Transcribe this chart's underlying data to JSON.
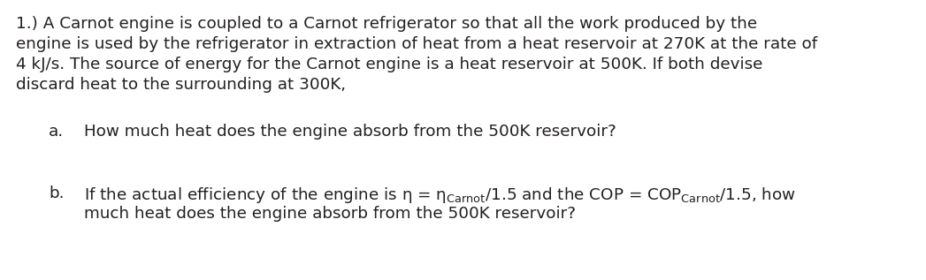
{
  "background_color": "#ffffff",
  "text_color": "#231f20",
  "figsize": [
    10.47,
    3.17
  ],
  "dpi": 100,
  "para_line1": "1.) A Carnot engine is coupled to a Carnot refrigerator so that all the work produced by the",
  "para_line2": "engine is used by the refrigerator in extraction of heat from a heat reservoir at 270K at the rate of",
  "para_line3": "4 kJ/s. The source of energy for the Carnot engine is a heat reservoir at 500K. If both devise",
  "para_line4": "discard heat to the surrounding at 300K,",
  "item_a_label": "a.",
  "item_a_text": "How much heat does the engine absorb from the 500K reservoir?",
  "item_b_label": "b.",
  "item_b_line2": "much heat does the engine absorb from the 500K reservoir?",
  "font_size": 13.2,
  "font_family": "Arial"
}
